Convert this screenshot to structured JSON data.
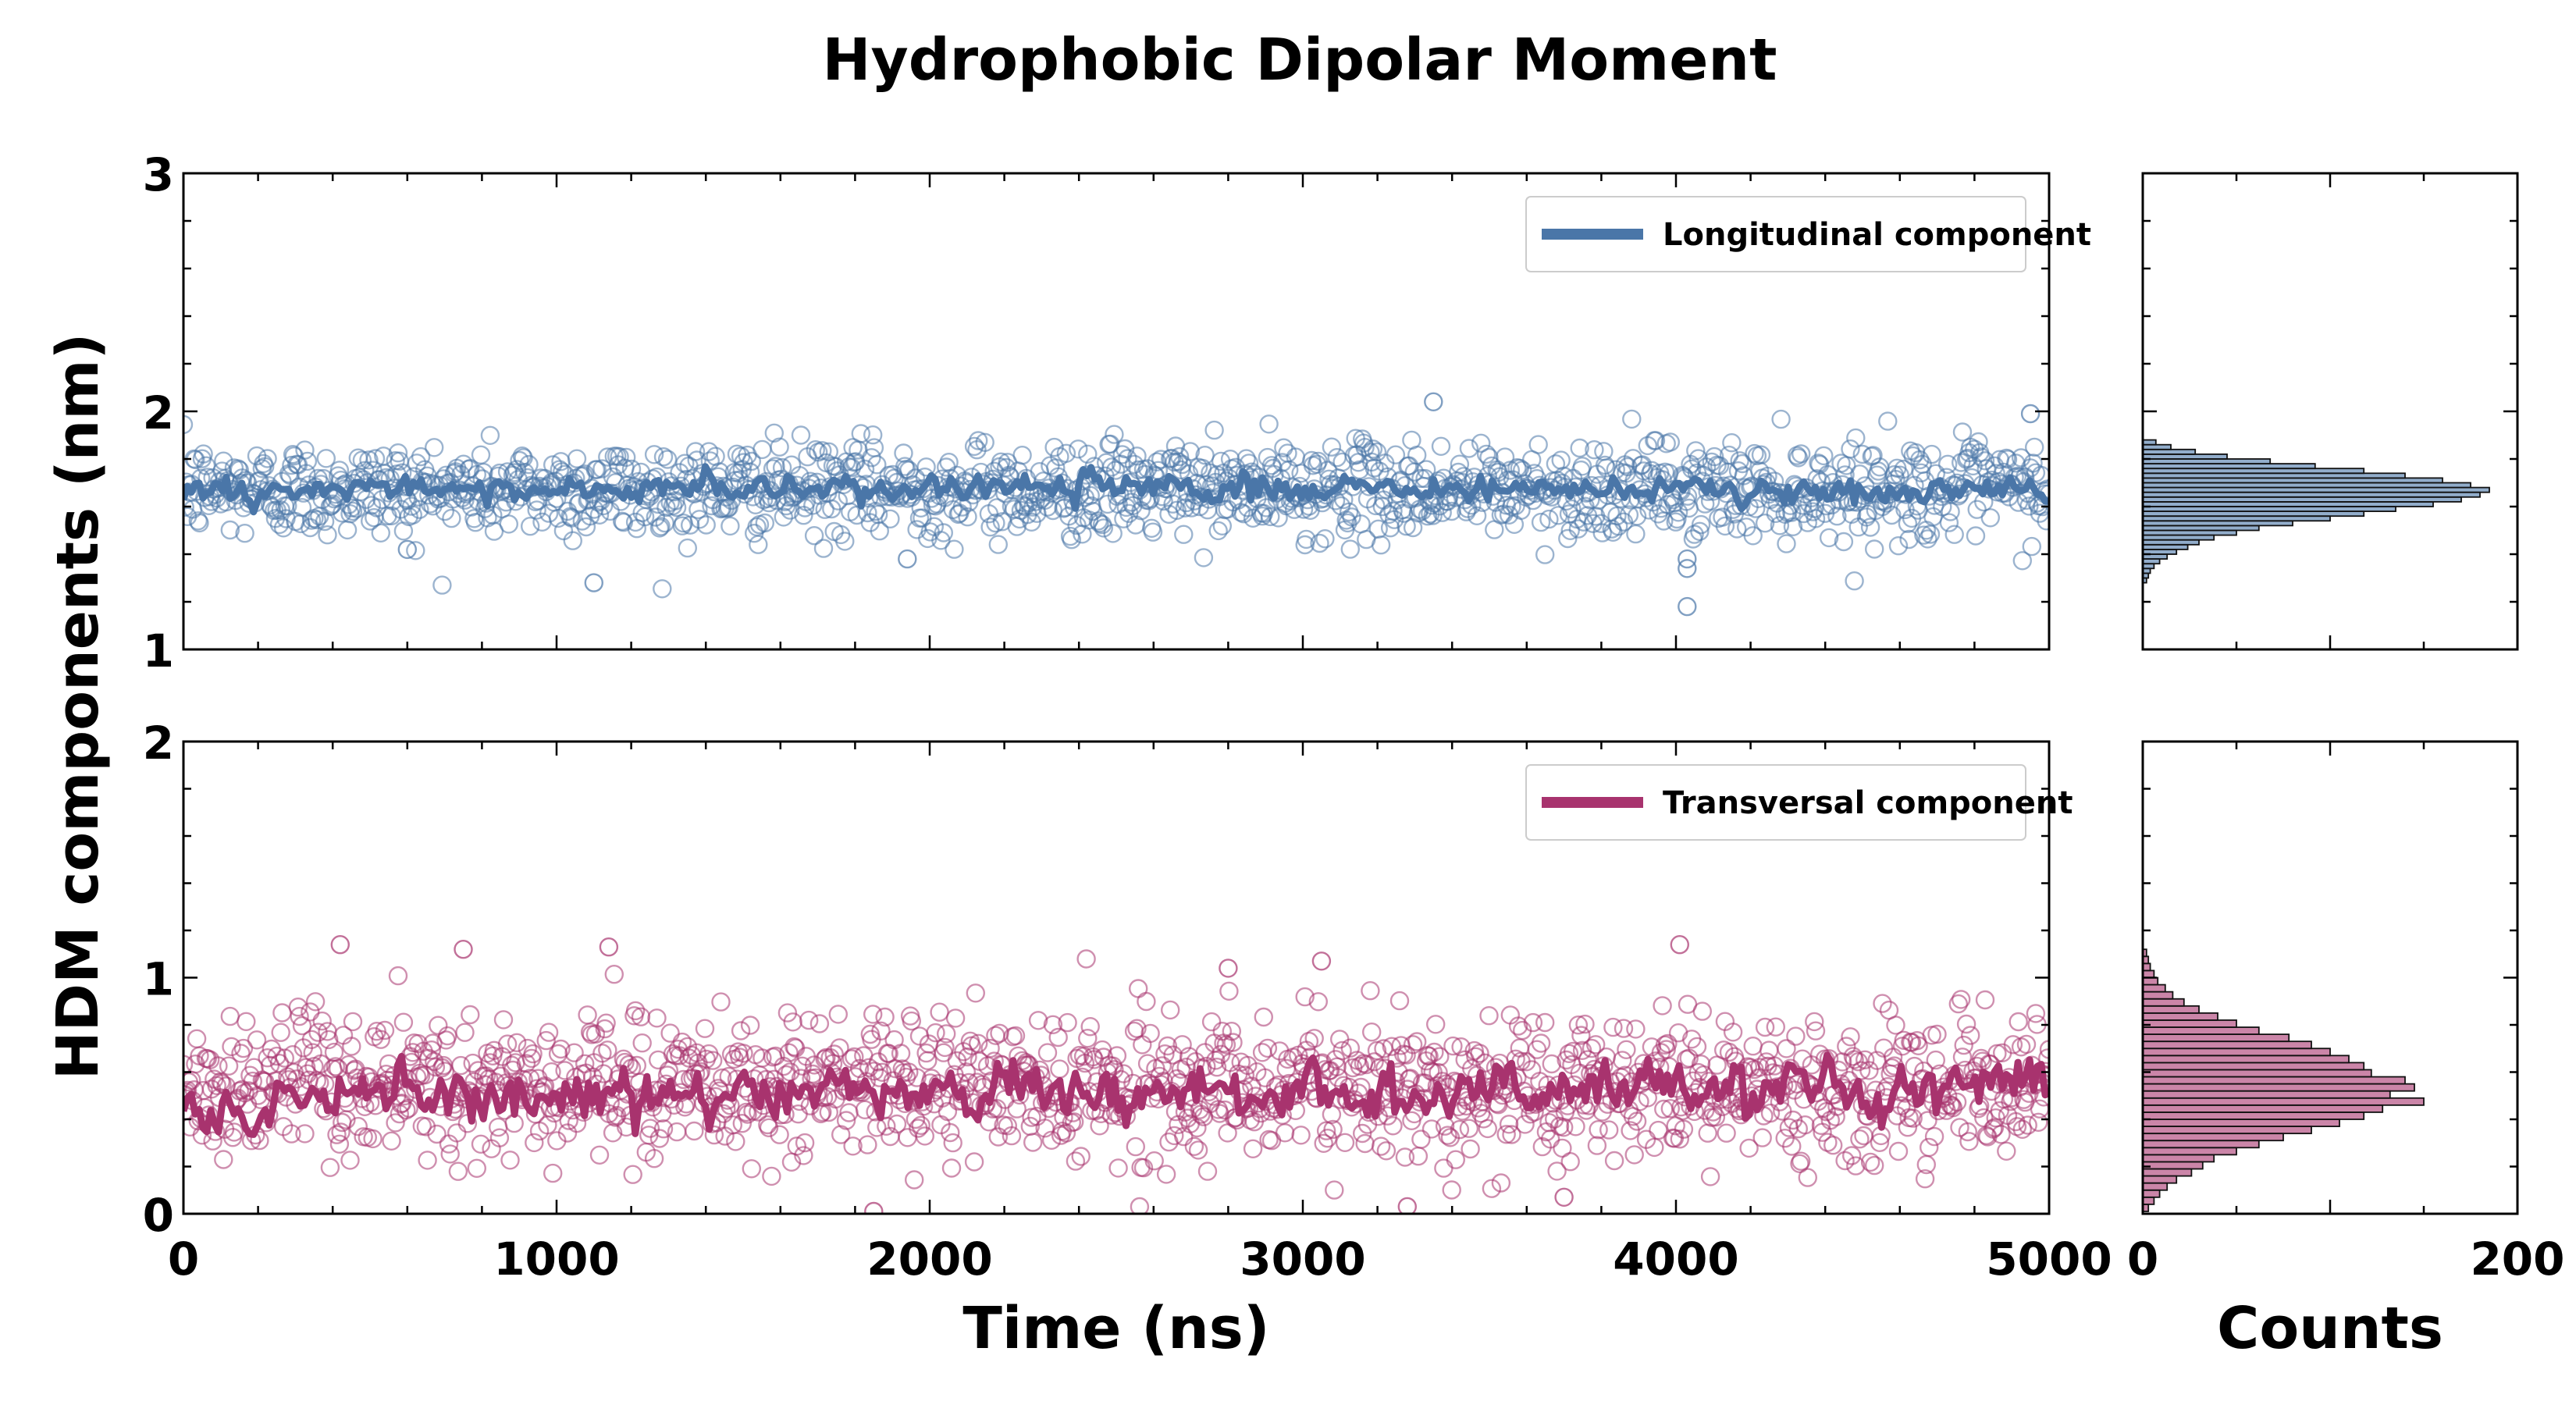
{
  "figure": {
    "title": "Hydrophobic Dipolar Moment",
    "ylabel": "HDM components (nm)"
  },
  "chart_data": [
    {
      "type": "scatter",
      "panel": "top-main",
      "xlabel": "",
      "ylabel": "HDM components (nm)",
      "xlim": [
        0,
        5000
      ],
      "ylim": [
        1,
        3
      ],
      "x_ticks": [
        "0",
        "1000",
        "2000",
        "3000",
        "4000",
        "5000"
      ],
      "x_ticks_visible": false,
      "y_ticks": [
        "1",
        "2",
        "3"
      ],
      "legend": {
        "label": "Longitudinal component",
        "position": "top-right"
      },
      "color": "#4a76a8",
      "marker": "open-circle",
      "series": [
        {
          "name": "Longitudinal component",
          "style": "scatter",
          "x_range": [
            0,
            5000
          ],
          "n_points": 1400,
          "mean": 1.67,
          "std": 0.11,
          "outliers": [
            [
              1100,
              1.28
            ],
            [
              3350,
              2.04
            ],
            [
              4030,
              1.18
            ],
            [
              4030,
              1.38
            ],
            [
              4030,
              1.34
            ],
            [
              600,
              1.42
            ],
            [
              1940,
              1.38
            ],
            [
              4950,
              1.99
            ]
          ]
        },
        {
          "name": "Longitudinal component",
          "style": "line",
          "x_range": [
            0,
            5000
          ],
          "mean": 1.67,
          "std": 0.04
        }
      ],
      "grid": false
    },
    {
      "type": "scatter",
      "panel": "bottom-main",
      "xlabel": "Time (ns)",
      "ylabel": "HDM components (nm)",
      "xlim": [
        0,
        5000
      ],
      "ylim": [
        0,
        2
      ],
      "x_ticks": [
        "0",
        "1000",
        "2000",
        "3000",
        "4000",
        "5000"
      ],
      "y_ticks": [
        "0",
        "1",
        "2"
      ],
      "legend": {
        "label": "Transversal component",
        "position": "top-right"
      },
      "color": "#a8336e",
      "marker": "open-circle",
      "series": [
        {
          "name": "Transversal component",
          "style": "scatter",
          "x_range": [
            0,
            5000
          ],
          "n_points": 1400,
          "mean": 0.54,
          "std": 0.17,
          "outliers": [
            [
              420,
              1.14
            ],
            [
              750,
              1.12
            ],
            [
              1140,
              1.13
            ],
            [
              4010,
              1.14
            ],
            [
              3050,
              1.07
            ],
            [
              2800,
              1.04
            ],
            [
              1850,
              0.01
            ],
            [
              3280,
              0.03
            ],
            [
              3700,
              0.07
            ]
          ]
        },
        {
          "name": "Transversal component",
          "style": "line",
          "x_range": [
            0,
            5000
          ],
          "mean": 0.52,
          "std": 0.08,
          "early_offset_until": 230,
          "early_mean": 0.42
        }
      ],
      "grid": false
    },
    {
      "type": "bar",
      "panel": "top-histogram",
      "orientation": "horizontal",
      "xlim": [
        0,
        200
      ],
      "ylim": [
        1,
        3
      ],
      "x_ticks": [
        "0",
        "200"
      ],
      "x_ticks_visible": false,
      "color": "#4a76a8",
      "bin_centers": [
        1.29,
        1.31,
        1.33,
        1.35,
        1.37,
        1.39,
        1.41,
        1.43,
        1.45,
        1.47,
        1.49,
        1.51,
        1.53,
        1.55,
        1.57,
        1.59,
        1.61,
        1.63,
        1.65,
        1.67,
        1.69,
        1.71,
        1.73,
        1.75,
        1.77,
        1.79,
        1.81,
        1.83,
        1.85,
        1.87
      ],
      "counts": [
        2,
        3,
        4,
        6,
        9,
        13,
        18,
        24,
        30,
        38,
        50,
        62,
        80,
        100,
        118,
        135,
        155,
        170,
        180,
        185,
        175,
        160,
        140,
        118,
        92,
        68,
        45,
        28,
        15,
        7
      ]
    },
    {
      "type": "bar",
      "panel": "bottom-histogram",
      "orientation": "horizontal",
      "xlabel": "Counts",
      "xlim": [
        0,
        200
      ],
      "ylim": [
        0,
        2
      ],
      "x_ticks": [
        "0",
        "200"
      ],
      "color": "#a8336e",
      "bin_centers": [
        0.025,
        0.055,
        0.085,
        0.115,
        0.145,
        0.175,
        0.205,
        0.235,
        0.265,
        0.295,
        0.325,
        0.355,
        0.385,
        0.415,
        0.445,
        0.475,
        0.505,
        0.535,
        0.565,
        0.595,
        0.625,
        0.655,
        0.685,
        0.715,
        0.745,
        0.775,
        0.805,
        0.835,
        0.865,
        0.895,
        0.925,
        0.955,
        0.985,
        1.015,
        1.045,
        1.075,
        1.105
      ],
      "counts": [
        3,
        6,
        9,
        13,
        18,
        26,
        32,
        38,
        50,
        62,
        75,
        90,
        105,
        118,
        128,
        150,
        132,
        145,
        140,
        122,
        118,
        110,
        100,
        90,
        78,
        62,
        50,
        40,
        30,
        22,
        16,
        12,
        8,
        6,
        4,
        3,
        2
      ]
    }
  ]
}
